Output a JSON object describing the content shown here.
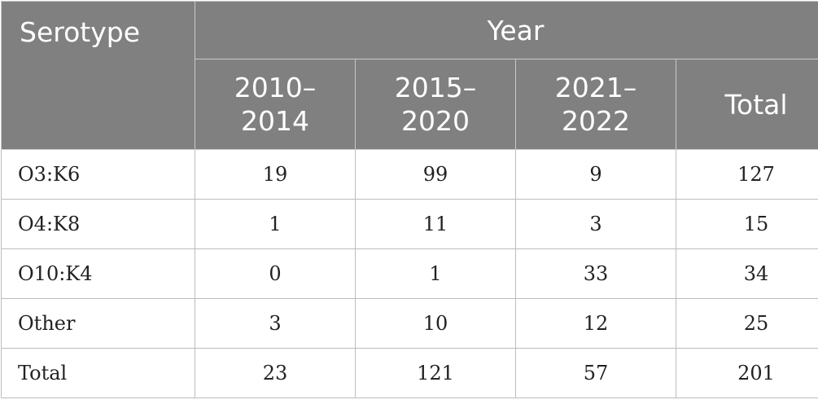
{
  "table": {
    "header": {
      "serotype_label": "Serotype",
      "year_label": "Year",
      "periods": [
        {
          "line1": "2010–",
          "line2": "2014"
        },
        {
          "line1": "2015–",
          "line2": "2020"
        },
        {
          "line1": "2021–",
          "line2": "2022"
        }
      ],
      "total_label": "Total"
    },
    "rows": [
      {
        "label": "O3:K6",
        "values": [
          "19",
          "99",
          "9",
          "127"
        ]
      },
      {
        "label": "O4:K8",
        "values": [
          "1",
          "11",
          "3",
          "15"
        ]
      },
      {
        "label": "O10:K4",
        "values": [
          "0",
          "1",
          "33",
          "34"
        ]
      },
      {
        "label": "Other",
        "values": [
          "3",
          "10",
          "12",
          "25"
        ]
      },
      {
        "label": "Total",
        "values": [
          "23",
          "121",
          "57",
          "201"
        ]
      }
    ]
  },
  "colors": {
    "header_bg": "#808080",
    "header_text": "#ffffff",
    "border": "#bdbdbd"
  }
}
